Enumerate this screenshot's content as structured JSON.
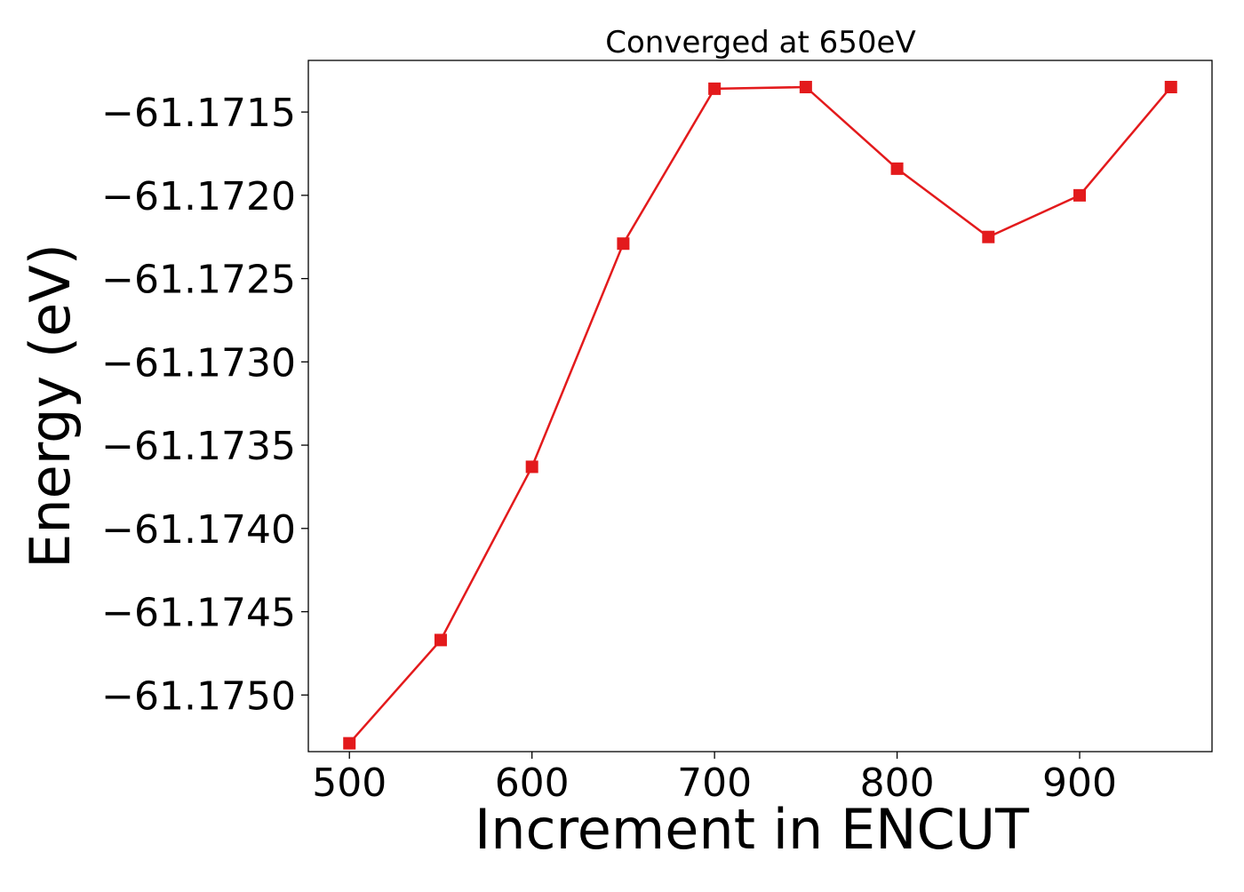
{
  "chart_data": {
    "type": "line",
    "title": "Converged at 650eV",
    "xlabel": "Increment in ENCUT",
    "ylabel": "Energy (eV)",
    "x": [
      500,
      550,
      600,
      650,
      700,
      750,
      800,
      850,
      900,
      950
    ],
    "series": [
      {
        "values": [
          -61.17529,
          -61.17467,
          -61.17363,
          -61.17229,
          -61.17136,
          -61.17135,
          -61.17184,
          -61.17225,
          -61.172,
          -61.17135
        ],
        "color": "#e31a1c",
        "marker": "square"
      }
    ],
    "xlim": [
      477.5,
      972.5
    ],
    "ylim": [
      -61.17534,
      -61.17119
    ],
    "xticks": [
      500,
      600,
      700,
      800,
      900
    ],
    "xtick_labels": [
      "500",
      "600",
      "700",
      "800",
      "900"
    ],
    "yticks": [
      -61.1715,
      -61.172,
      -61.1725,
      -61.173,
      -61.1735,
      -61.174,
      -61.1745,
      -61.175
    ],
    "ytick_labels": [
      "−61.1715",
      "−61.1720",
      "−61.1725",
      "−61.1730",
      "−61.1735",
      "−61.1740",
      "−61.1745",
      "−61.1750"
    ],
    "grid": false,
    "legend": "none"
  }
}
